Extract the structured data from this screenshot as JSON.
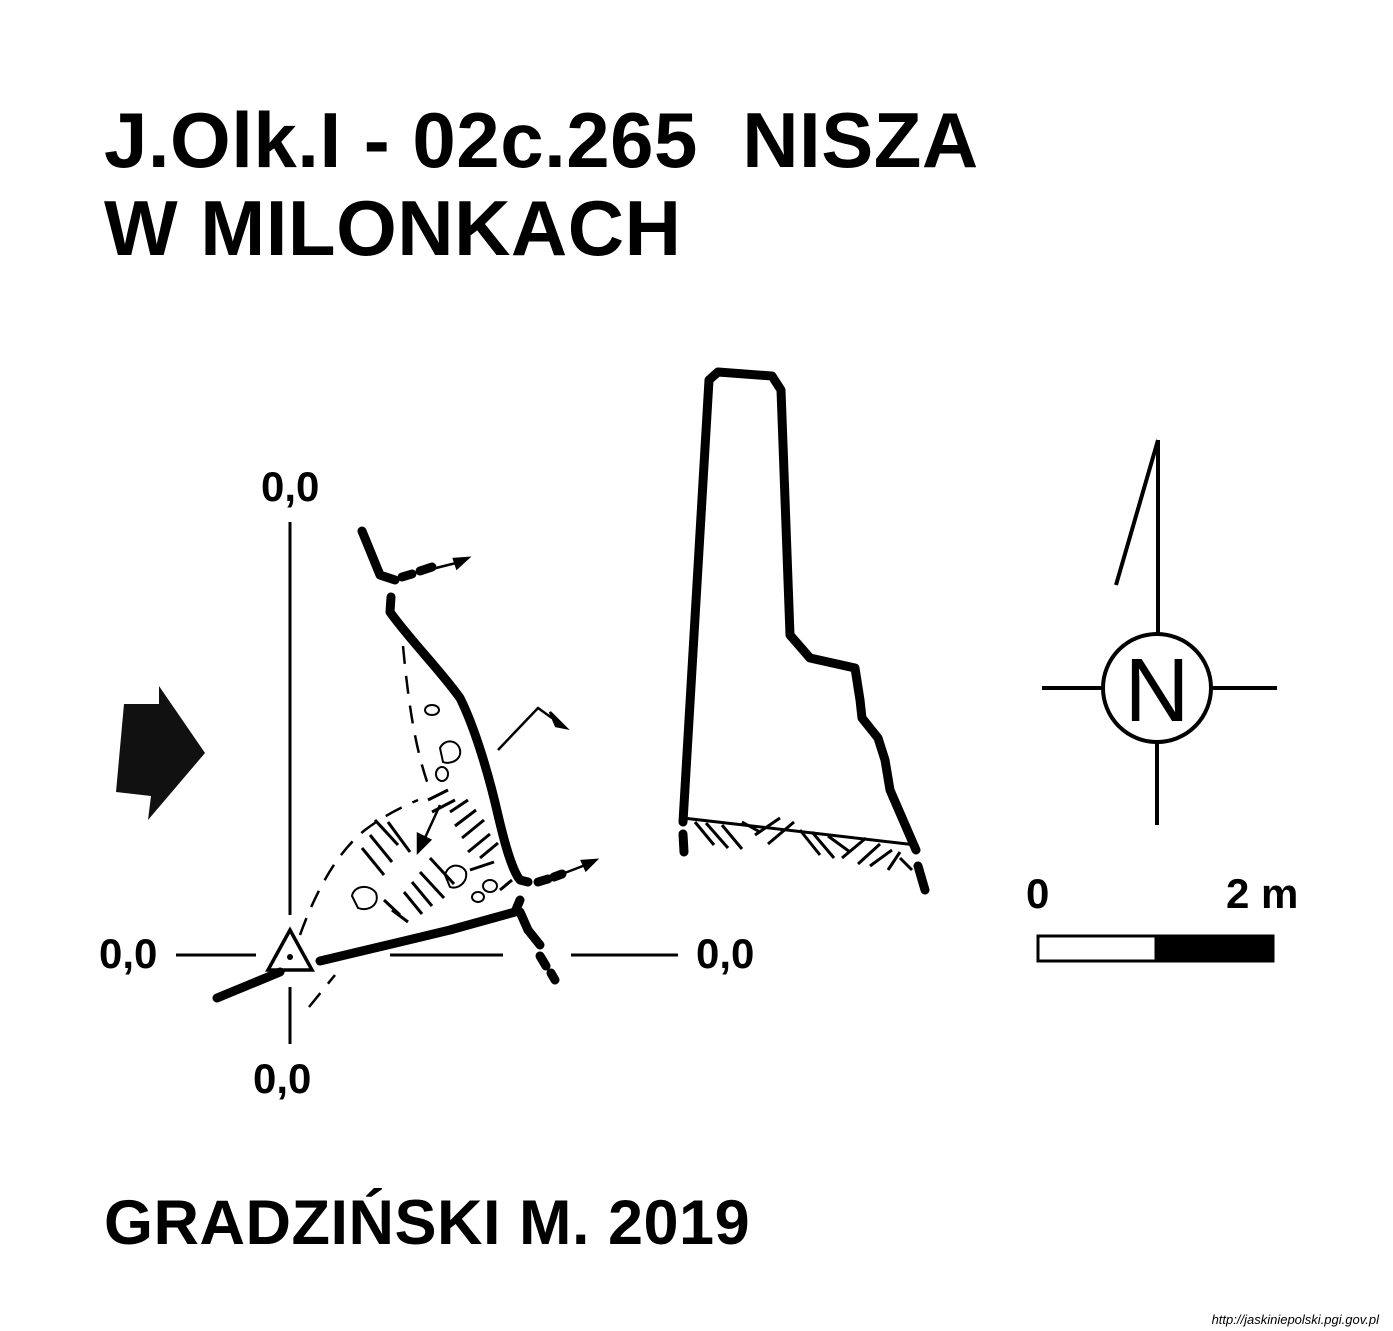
{
  "title": {
    "line1": "J.Olk.I - 02c.265  NISZA",
    "line2": "W MILONKACH"
  },
  "datum_labels": {
    "top": "0,0",
    "bottom": "0,0",
    "left": "0,0",
    "right": "0,0"
  },
  "north_arrow": {
    "letter": "N"
  },
  "scale_bar": {
    "start_label": "0",
    "end_label": "2 m",
    "colors": {
      "light": "#ffffff",
      "dark": "#000000"
    }
  },
  "author": "GRADZIŃSKI M. 2019",
  "credit": "http://jaskiniepolski.pgi.gov.pl",
  "icons": [
    "entrance-arrow-icon",
    "survey-station-icon",
    "north-arrow-icon"
  ]
}
